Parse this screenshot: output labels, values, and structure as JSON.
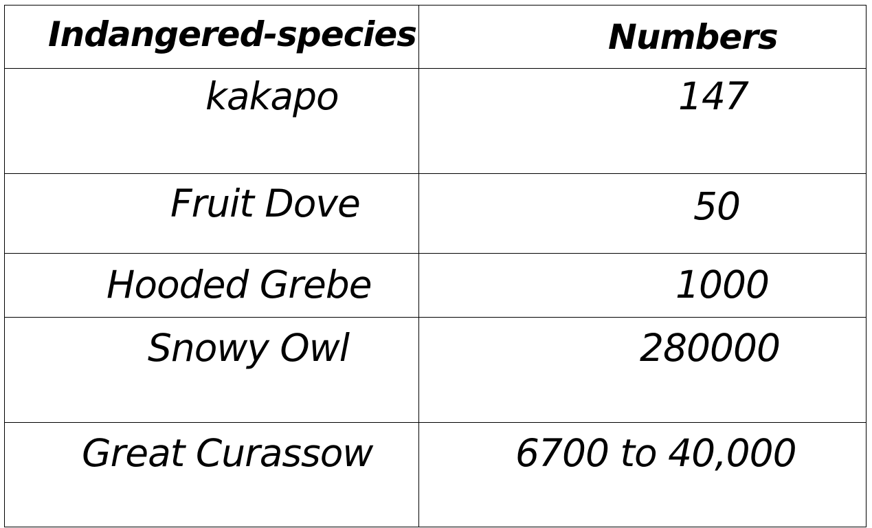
{
  "table": {
    "headers": [
      "Indangered-species",
      "Numbers"
    ],
    "rows": [
      {
        "species": "kakapo",
        "number": "147"
      },
      {
        "species": "Fruit Dove",
        "number": "50"
      },
      {
        "species": "Hooded Grebe",
        "number": "1000"
      },
      {
        "species": "Snowy Owl",
        "number": "280000"
      },
      {
        "species": "Great Curassow",
        "number": "6700 to 40,000"
      }
    ]
  }
}
